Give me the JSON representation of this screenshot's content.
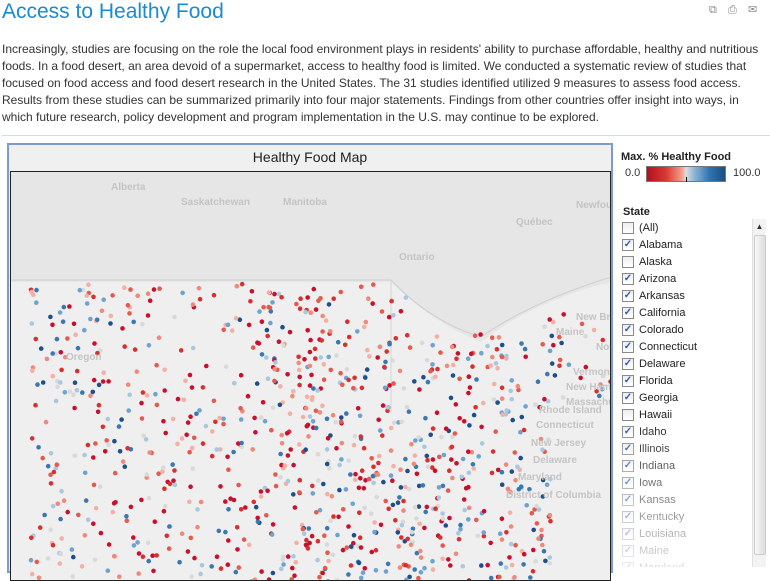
{
  "title": "Access to Healthy Food",
  "toolbar": {
    "icons": [
      "share-icon",
      "print-icon",
      "email-icon"
    ]
  },
  "intro": "Increasingly, studies are focusing on the role the local food environment plays in residents' ability to purchase affordable, healthy and nutritious foods. In a food desert, an area devoid of a supermarket, access to healthy food is limited. We conducted a systematic review of studies that focused on food access and food desert research in the United States. The 31 studies identified utilized 9 measures to assess food access. Results from these studies can be summarized primarily into four major statements. Findings from other countries offer insight into ways, in which future research, policy development and program implementation in the U.S. may continue to be explored.",
  "map": {
    "title": "Healthy Food Map",
    "labels": [
      "Alberta",
      "Saskatchewan",
      "Manitoba",
      "Ontario",
      "Québec",
      "Newfoun",
      "Oregon",
      "New Brunsw",
      "Nov",
      "Maine",
      "Vermont",
      "New Hampsh",
      "Massachuse",
      "Rhode Island",
      "Connecticut",
      "New Jersey",
      "Delaware",
      "Maryland",
      "District of Columbia"
    ]
  },
  "legend": {
    "title": "Max. % Healthy Food",
    "min": "0.0",
    "max": "100.0",
    "colors": {
      "low": "#b2101e",
      "mid": "#dcdcdc",
      "high": "#1b4d85"
    }
  },
  "filter": {
    "title": "State",
    "items": [
      {
        "label": "(All)",
        "checked": false
      },
      {
        "label": "Alabama",
        "checked": true
      },
      {
        "label": "Alaska",
        "checked": false
      },
      {
        "label": "Arizona",
        "checked": true
      },
      {
        "label": "Arkansas",
        "checked": true
      },
      {
        "label": "California",
        "checked": true
      },
      {
        "label": "Colorado",
        "checked": true
      },
      {
        "label": "Connecticut",
        "checked": true
      },
      {
        "label": "Delaware",
        "checked": true
      },
      {
        "label": "Florida",
        "checked": true
      },
      {
        "label": "Georgia",
        "checked": true
      },
      {
        "label": "Hawaii",
        "checked": false
      },
      {
        "label": "Idaho",
        "checked": true
      },
      {
        "label": "Illinois",
        "checked": true
      },
      {
        "label": "Indiana",
        "checked": true
      },
      {
        "label": "Iowa",
        "checked": true
      },
      {
        "label": "Kansas",
        "checked": true
      },
      {
        "label": "Kentucky",
        "checked": true
      },
      {
        "label": "Louisiana",
        "checked": true
      },
      {
        "label": "Maine",
        "checked": true
      },
      {
        "label": "Maryland",
        "checked": true
      }
    ]
  }
}
